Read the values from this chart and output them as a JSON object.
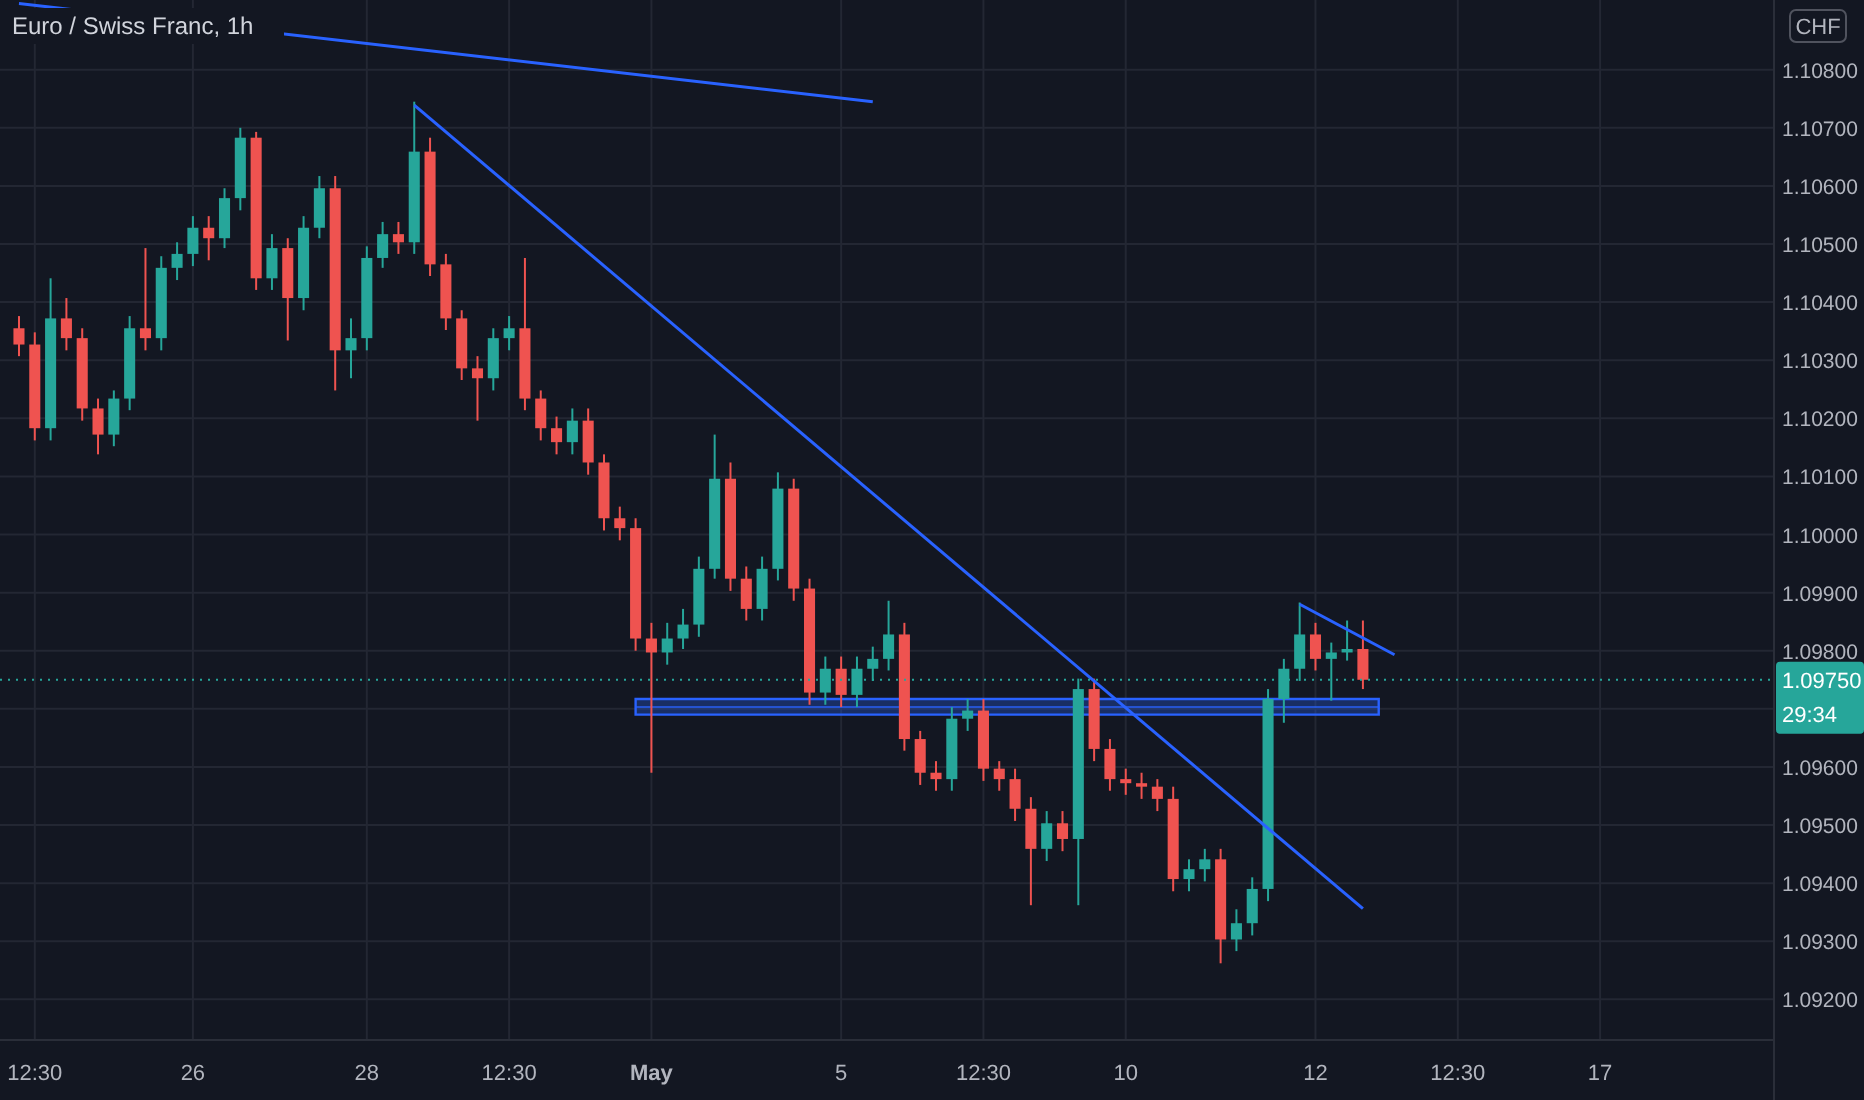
{
  "chart_data": {
    "type": "candlestick",
    "title": "Euro / Swiss Franc, 1h",
    "annotations": [
      "CHF",
      "29:34"
    ],
    "categories": [
      null,
      "12:30",
      null,
      null,
      null,
      null,
      null,
      null,
      null,
      null,
      null,
      "26",
      null,
      null,
      null,
      null,
      null,
      null,
      null,
      null,
      null,
      null,
      "28",
      null,
      null,
      null,
      null,
      null,
      null,
      null,
      null,
      "12:30",
      null,
      null,
      null,
      null,
      null,
      null,
      null,
      null,
      "May",
      null,
      null,
      null,
      null,
      null,
      null,
      null,
      null,
      null,
      null,
      null,
      "5",
      null,
      null,
      null,
      null,
      null,
      null,
      null,
      null,
      "12:30",
      null,
      null,
      null,
      null,
      null,
      null,
      null,
      null,
      "10",
      null,
      null,
      null,
      null,
      null,
      null,
      null,
      null,
      null,
      null,
      null,
      "12",
      null,
      null,
      null,
      null,
      null,
      null,
      null,
      null,
      "12:30",
      null,
      null,
      null,
      null,
      null,
      null,
      null,
      null,
      "17",
      null,
      null,
      null,
      null,
      null,
      null,
      null,
      null,
      null,
      null,
      null
    ],
    "ohlc": [
      [
        1.10355,
        1.10376,
        1.10307,
        1.10327
      ],
      [
        1.10327,
        1.10348,
        1.10162,
        1.10183
      ],
      [
        1.10183,
        1.10441,
        1.10162,
        1.10372
      ],
      [
        1.10372,
        1.10407,
        1.10317,
        1.10338
      ],
      [
        1.10338,
        1.10355,
        1.10196,
        1.10217
      ],
      [
        1.10217,
        1.10234,
        1.10138,
        1.10172
      ],
      [
        1.10172,
        1.10248,
        1.10152,
        1.10234
      ],
      [
        1.10234,
        1.10376,
        1.10214,
        1.10355
      ],
      [
        1.10355,
        1.10493,
        1.10317,
        1.10338
      ],
      [
        1.10338,
        1.10479,
        1.10317,
        1.10459
      ],
      [
        1.10459,
        1.10503,
        1.10438,
        1.10483
      ],
      [
        1.10483,
        1.10548,
        1.10462,
        1.10528
      ],
      [
        1.10528,
        1.10548,
        1.10472,
        1.1051
      ],
      [
        1.1051,
        1.10596,
        1.10493,
        1.10579
      ],
      [
        1.10579,
        1.107,
        1.10558,
        1.10683
      ],
      [
        1.10683,
        1.10693,
        1.10421,
        1.10441
      ],
      [
        1.10441,
        1.10517,
        1.10421,
        1.10493
      ],
      [
        1.10493,
        1.1051,
        1.10334,
        1.10407
      ],
      [
        1.10407,
        1.10548,
        1.10386,
        1.10528
      ],
      [
        1.10528,
        1.10617,
        1.1051,
        1.10596
      ],
      [
        1.10596,
        1.10617,
        1.10248,
        1.10317
      ],
      [
        1.10317,
        1.10372,
        1.10269,
        1.10338
      ],
      [
        1.10338,
        1.10496,
        1.10317,
        1.10476
      ],
      [
        1.10476,
        1.10538,
        1.10459,
        1.10517
      ],
      [
        1.10517,
        1.10538,
        1.10483,
        1.10503
      ],
      [
        1.10503,
        1.10745,
        1.10483,
        1.10659
      ],
      [
        1.10659,
        1.10683,
        1.10445,
        1.10465
      ],
      [
        1.10465,
        1.10483,
        1.10352,
        1.10372
      ],
      [
        1.10372,
        1.10386,
        1.10266,
        1.10286
      ],
      [
        1.10286,
        1.10307,
        1.10196,
        1.10269
      ],
      [
        1.10269,
        1.10355,
        1.10248,
        1.10338
      ],
      [
        1.10338,
        1.10376,
        1.10317,
        1.10355
      ],
      [
        1.10355,
        1.10476,
        1.10214,
        1.10234
      ],
      [
        1.10234,
        1.10248,
        1.10162,
        1.10183
      ],
      [
        1.10183,
        1.10203,
        1.10138,
        1.10159
      ],
      [
        1.10159,
        1.10217,
        1.10138,
        1.10196
      ],
      [
        1.10196,
        1.10217,
        1.10103,
        1.10124
      ],
      [
        1.10124,
        1.10138,
        1.10007,
        1.10028
      ],
      [
        1.10028,
        1.10048,
        1.0999,
        1.10011
      ],
      [
        1.10011,
        1.10028,
        1.098,
        1.09821
      ],
      [
        1.09821,
        1.09848,
        1.0959,
        1.09797
      ],
      [
        1.09797,
        1.09848,
        1.09776,
        1.09821
      ],
      [
        1.09821,
        1.09872,
        1.09803,
        1.09845
      ],
      [
        1.09845,
        1.09962,
        1.09824,
        1.09941
      ],
      [
        1.09941,
        1.10172,
        1.09924,
        1.10096
      ],
      [
        1.10096,
        1.10124,
        1.09903,
        1.09924
      ],
      [
        1.09924,
        1.09945,
        1.09852,
        1.09872
      ],
      [
        1.09872,
        1.09962,
        1.09852,
        1.09941
      ],
      [
        1.09941,
        1.10107,
        1.09921,
        1.10079
      ],
      [
        1.10079,
        1.10096,
        1.09886,
        1.09907
      ],
      [
        1.09907,
        1.09924,
        1.09707,
        1.09728
      ],
      [
        1.09728,
        1.0979,
        1.09707,
        1.09769
      ],
      [
        1.09769,
        1.0979,
        1.09703,
        1.09724
      ],
      [
        1.09724,
        1.0979,
        1.09703,
        1.09769
      ],
      [
        1.09769,
        1.09807,
        1.09748,
        1.09786
      ],
      [
        1.09786,
        1.09886,
        1.09766,
        1.09828
      ],
      [
        1.09828,
        1.09848,
        1.09628,
        1.09648
      ],
      [
        1.09648,
        1.09662,
        1.09569,
        1.0959
      ],
      [
        1.0959,
        1.0961,
        1.09559,
        1.09579
      ],
      [
        1.09579,
        1.09703,
        1.09559,
        1.09683
      ],
      [
        1.09683,
        1.09717,
        1.09662,
        1.09697
      ],
      [
        1.09697,
        1.09717,
        1.09576,
        1.09597
      ],
      [
        1.09597,
        1.0961,
        1.09559,
        1.09579
      ],
      [
        1.09579,
        1.09597,
        1.09507,
        1.09528
      ],
      [
        1.09528,
        1.09548,
        1.09362,
        1.09459
      ],
      [
        1.09459,
        1.09524,
        1.09438,
        1.09503
      ],
      [
        1.09503,
        1.09524,
        1.09455,
        1.09476
      ],
      [
        1.09476,
        1.09752,
        1.09362,
        1.09734
      ],
      [
        1.09734,
        1.09752,
        1.0961,
        1.09631
      ],
      [
        1.09631,
        1.09648,
        1.09559,
        1.09579
      ],
      [
        1.09579,
        1.09597,
        1.09552,
        1.09572
      ],
      [
        1.09572,
        1.0959,
        1.09545,
        1.09566
      ],
      [
        1.09566,
        1.09579,
        1.09524,
        1.09545
      ],
      [
        1.09545,
        1.09566,
        1.09386,
        1.09407
      ],
      [
        1.09407,
        1.09441,
        1.09386,
        1.09424
      ],
      [
        1.09424,
        1.09459,
        1.09403,
        1.09441
      ],
      [
        1.09441,
        1.09459,
        1.09262,
        1.09303
      ],
      [
        1.09303,
        1.09355,
        1.09283,
        1.09331
      ],
      [
        1.09331,
        1.0941,
        1.0931,
        1.0939
      ],
      [
        1.0939,
        1.09734,
        1.09369,
        1.09717
      ],
      [
        1.09717,
        1.09786,
        1.09676,
        1.09769
      ],
      [
        1.09769,
        1.09883,
        1.09748,
        1.09828
      ],
      [
        1.09828,
        1.09848,
        1.09766,
        1.09786
      ],
      [
        1.09786,
        1.09814,
        1.09714,
        1.09797
      ],
      [
        1.09797,
        1.09852,
        1.09783,
        1.09803
      ],
      [
        1.09803,
        1.09852,
        1.09734,
        1.0975
      ],
      null,
      null,
      null,
      null,
      null,
      null,
      null,
      null,
      null,
      null,
      null,
      null,
      null,
      null,
      null,
      null,
      null,
      null,
      null,
      null,
      null,
      null,
      null,
      null,
      null,
      null
    ],
    "colors": [
      "#ef5350",
      "#ef5350",
      "#26a69a",
      "#ef5350",
      "#ef5350",
      "#ef5350",
      "#26a69a",
      "#26a69a",
      "#ef5350",
      "#26a69a",
      "#26a69a",
      "#26a69a",
      "#ef5350",
      "#26a69a",
      "#26a69a",
      "#ef5350",
      "#26a69a",
      "#ef5350",
      "#26a69a",
      "#26a69a",
      "#ef5350",
      "#26a69a",
      "#26a69a",
      "#26a69a",
      "#ef5350",
      "#26a69a",
      "#ef5350",
      "#ef5350",
      "#ef5350",
      "#ef5350",
      "#26a69a",
      "#26a69a",
      "#ef5350",
      "#ef5350",
      "#ef5350",
      "#26a69a",
      "#ef5350",
      "#ef5350",
      "#ef5350",
      "#ef5350",
      "#ef5350",
      "#26a69a",
      "#26a69a",
      "#26a69a",
      "#26a69a",
      "#ef5350",
      "#ef5350",
      "#26a69a",
      "#26a69a",
      "#ef5350",
      "#ef5350",
      "#26a69a",
      "#ef5350",
      "#26a69a",
      "#26a69a",
      "#26a69a",
      "#ef5350",
      "#ef5350",
      "#ef5350",
      "#26a69a",
      "#26a69a",
      "#ef5350",
      "#ef5350",
      "#ef5350",
      "#ef5350",
      "#26a69a",
      "#ef5350",
      "#26a69a",
      "#ef5350",
      "#ef5350",
      "#ef5350",
      "#ef5350",
      "#ef5350",
      "#ef5350",
      "#26a69a",
      "#26a69a",
      "#ef5350",
      "#26a69a",
      "#26a69a",
      "#26a69a",
      "#26a69a",
      "#26a69a",
      "#ef5350",
      "#26a69a",
      "#26a69a",
      "#ef5350",
      null,
      null,
      null,
      null,
      null,
      null,
      null,
      null,
      null,
      null,
      null,
      null,
      null,
      null,
      null,
      null,
      null,
      null,
      null,
      null,
      null,
      null,
      null,
      null,
      null,
      null
    ],
    "series": [
      {
        "type": "line",
        "color": "#2962ff",
        "values": [
          1.10914,
          null,
          null,
          null,
          null,
          null,
          null,
          null,
          null,
          null,
          null,
          null,
          null,
          null,
          null,
          null,
          null,
          null,
          null,
          null,
          null,
          null,
          null,
          null,
          null,
          null,
          null,
          null,
          null,
          null,
          null,
          null,
          null,
          null,
          null,
          null,
          null,
          null,
          null,
          null,
          null,
          null,
          null,
          null,
          null,
          null,
          null,
          null,
          null,
          null,
          null,
          null,
          null,
          null,
          1.10745,
          null,
          null,
          null,
          null,
          null,
          null,
          null,
          null,
          null,
          null,
          null,
          null,
          null,
          null,
          null,
          null,
          null,
          null,
          null,
          null,
          null,
          null,
          null,
          null,
          null,
          null,
          null,
          null,
          null,
          null,
          null,
          null,
          null,
          null,
          null,
          null,
          null,
          null,
          null,
          null,
          null,
          null,
          null,
          null,
          null,
          null,
          null,
          null,
          null,
          null,
          null,
          null,
          null,
          null,
          null,
          null,
          null
        ]
      },
      {
        "type": "line",
        "color": "#2962ff",
        "values": [
          null,
          null,
          null,
          null,
          null,
          null,
          null,
          null,
          null,
          null,
          null,
          null,
          null,
          null,
          null,
          null,
          null,
          null,
          null,
          null,
          null,
          null,
          null,
          null,
          null,
          1.10739,
          null,
          null,
          null,
          null,
          null,
          null,
          null,
          null,
          null,
          null,
          null,
          null,
          null,
          null,
          null,
          null,
          null,
          null,
          null,
          null,
          null,
          null,
          null,
          null,
          null,
          null,
          null,
          null,
          null,
          null,
          null,
          null,
          null,
          null,
          null,
          null,
          null,
          null,
          null,
          null,
          null,
          null,
          null,
          null,
          null,
          null,
          null,
          null,
          null,
          null,
          null,
          null,
          null,
          null,
          null,
          null,
          null,
          null,
          null,
          1.09356,
          null,
          null,
          null,
          null,
          null,
          null,
          null,
          null,
          null,
          null,
          null,
          null,
          null,
          null,
          null,
          null,
          null,
          null,
          null,
          null,
          null,
          null,
          null,
          null,
          null,
          null
        ]
      },
      {
        "type": "line",
        "color": "#2962ff",
        "values": [
          null,
          null,
          null,
          null,
          null,
          null,
          null,
          null,
          null,
          null,
          null,
          null,
          null,
          null,
          null,
          null,
          null,
          null,
          null,
          null,
          null,
          null,
          null,
          null,
          null,
          null,
          null,
          null,
          null,
          null,
          null,
          null,
          null,
          null,
          null,
          null,
          null,
          null,
          null,
          null,
          null,
          null,
          null,
          null,
          null,
          null,
          null,
          null,
          null,
          null,
          null,
          null,
          null,
          null,
          null,
          null,
          null,
          null,
          null,
          null,
          null,
          null,
          null,
          null,
          null,
          null,
          null,
          null,
          null,
          null,
          null,
          null,
          null,
          null,
          null,
          null,
          null,
          null,
          null,
          null,
          null,
          1.0988,
          null,
          null,
          null,
          null,
          null,
          1.09793,
          null,
          null,
          null,
          null,
          null,
          null,
          null,
          null,
          null,
          null,
          null,
          null,
          null,
          null,
          null,
          null,
          null,
          null,
          null,
          null,
          null,
          null,
          null,
          null
        ]
      },
      {
        "type": "line",
        "color": "#2962ff",
        "values": [
          null,
          null,
          null,
          null,
          null,
          null,
          null,
          null,
          null,
          null,
          null,
          null,
          null,
          null,
          null,
          null,
          null,
          null,
          null,
          null,
          null,
          null,
          null,
          null,
          null,
          null,
          null,
          null,
          null,
          null,
          null,
          null,
          null,
          null,
          null,
          null,
          null,
          null,
          null,
          1.09703,
          null,
          null,
          null,
          null,
          null,
          null,
          null,
          null,
          null,
          null,
          null,
          null,
          null,
          null,
          null,
          null,
          null,
          null,
          null,
          null,
          null,
          null,
          null,
          null,
          null,
          null,
          null,
          null,
          null,
          null,
          null,
          null,
          null,
          null,
          null,
          null,
          null,
          null,
          null,
          null,
          null,
          null,
          null,
          null,
          null,
          null,
          1.09703,
          null,
          null,
          null,
          null,
          null,
          null,
          null,
          null,
          null,
          null,
          null,
          null,
          null,
          null,
          null,
          null,
          null,
          null,
          null,
          null,
          null,
          null,
          null,
          null,
          null
        ],
        "lower": [
          null,
          null,
          null,
          null,
          null,
          null,
          null,
          null,
          null,
          null,
          null,
          null,
          null,
          null,
          null,
          null,
          null,
          null,
          null,
          null,
          null,
          null,
          null,
          null,
          null,
          null,
          null,
          null,
          null,
          null,
          null,
          null,
          null,
          null,
          null,
          null,
          null,
          null,
          null,
          1.0969,
          null,
          null,
          null,
          null,
          null,
          null,
          null,
          null,
          null,
          null,
          null,
          null,
          null,
          null,
          null,
          null,
          null,
          null,
          null,
          null,
          null,
          null,
          null,
          null,
          null,
          null,
          null,
          null,
          null,
          null,
          null,
          null,
          null,
          null,
          null,
          null,
          null,
          null,
          null,
          null,
          null,
          null,
          null,
          null,
          null,
          null,
          1.0969,
          null,
          null,
          null,
          null,
          null,
          null,
          null,
          null,
          null,
          null,
          null,
          null,
          null,
          null,
          null,
          null,
          null,
          null,
          null,
          null,
          null,
          null,
          null,
          null,
          null
        ],
        "upper": [
          null,
          null,
          null,
          null,
          null,
          null,
          null,
          null,
          null,
          null,
          null,
          null,
          null,
          null,
          null,
          null,
          null,
          null,
          null,
          null,
          null,
          null,
          null,
          null,
          null,
          null,
          null,
          null,
          null,
          null,
          null,
          null,
          null,
          null,
          null,
          null,
          null,
          null,
          null,
          1.09717,
          null,
          null,
          null,
          null,
          null,
          null,
          null,
          null,
          null,
          null,
          null,
          null,
          null,
          null,
          null,
          null,
          null,
          null,
          null,
          null,
          null,
          null,
          null,
          null,
          null,
          null,
          null,
          null,
          null,
          null,
          null,
          null,
          null,
          null,
          null,
          null,
          null,
          null,
          null,
          null,
          null,
          null,
          null,
          null,
          null,
          null,
          1.09717,
          null,
          null,
          null,
          null,
          null,
          null,
          null,
          null,
          null,
          null,
          null,
          null,
          null,
          null,
          null,
          null,
          null,
          null,
          null,
          null,
          null,
          null,
          null,
          null,
          null
        ]
      }
    ],
    "ref_lines": [
      {
        "axis": "y",
        "value": 1.0975,
        "label": "1.09750",
        "color": "#26a69a",
        "line_style": "dotted"
      }
    ],
    "ylim": [
      1.0913,
      1.1092
    ],
    "yticks": [
      {
        "value": 1.092,
        "label": "1.09200"
      },
      {
        "value": 1.093,
        "label": "1.09300"
      },
      {
        "value": 1.094,
        "label": "1.09400"
      },
      {
        "value": 1.095,
        "label": "1.09500"
      },
      {
        "value": 1.096,
        "label": "1.09600"
      },
      {
        "value": 1.097,
        "label": null
      },
      {
        "value": 1.098,
        "label": "1.09800"
      },
      {
        "value": 1.099,
        "label": "1.09900"
      },
      {
        "value": 1.1,
        "label": "1.10000"
      },
      {
        "value": 1.101,
        "label": "1.10100"
      },
      {
        "value": 1.102,
        "label": "1.10200"
      },
      {
        "value": 1.103,
        "label": "1.10300"
      },
      {
        "value": 1.104,
        "label": "1.10400"
      },
      {
        "value": 1.105,
        "label": "1.10500"
      },
      {
        "value": 1.106,
        "label": "1.10600"
      },
      {
        "value": 1.107,
        "label": "1.10700"
      },
      {
        "value": 1.108,
        "label": "1.10800"
      }
    ],
    "grid": true
  }
}
